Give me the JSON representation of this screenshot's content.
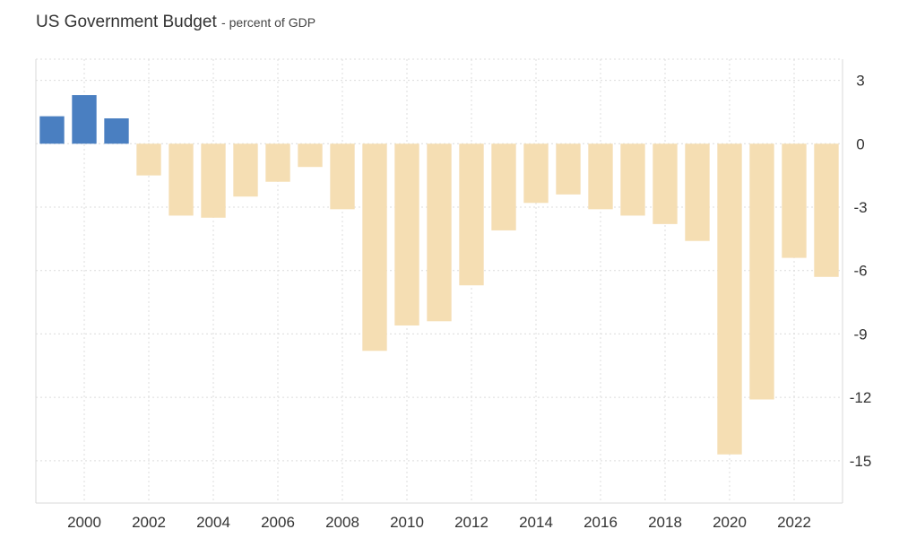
{
  "chart_data": {
    "type": "bar",
    "title": "US Government Budget",
    "subtitle": "percent of GDP",
    "xlabel": "",
    "ylabel": "",
    "categories": [
      "1999",
      "2000",
      "2001",
      "2002",
      "2003",
      "2004",
      "2005",
      "2006",
      "2007",
      "2008",
      "2009",
      "2010",
      "2011",
      "2012",
      "2013",
      "2014",
      "2015",
      "2016",
      "2017",
      "2018",
      "2019",
      "2020",
      "2021",
      "2022",
      "2023"
    ],
    "values": [
      1.3,
      2.3,
      1.2,
      -1.5,
      -3.4,
      -3.5,
      -2.5,
      -1.8,
      -1.1,
      -3.1,
      -9.8,
      -8.6,
      -8.4,
      -6.7,
      -4.1,
      -2.8,
      -2.4,
      -3.1,
      -3.4,
      -3.8,
      -4.6,
      -14.7,
      -12.1,
      -5.4,
      -6.3
    ],
    "x_tick_labels": [
      "2000",
      "2002",
      "2004",
      "2006",
      "2008",
      "2010",
      "2012",
      "2014",
      "2016",
      "2018",
      "2020",
      "2022"
    ],
    "y_ticks": [
      3,
      0,
      -3,
      -6,
      -9,
      -12,
      -15
    ],
    "ylim": [
      -17,
      4
    ],
    "grid": true,
    "colors": {
      "positive": "#4a7fc1",
      "negative": "#f5deb3"
    }
  }
}
